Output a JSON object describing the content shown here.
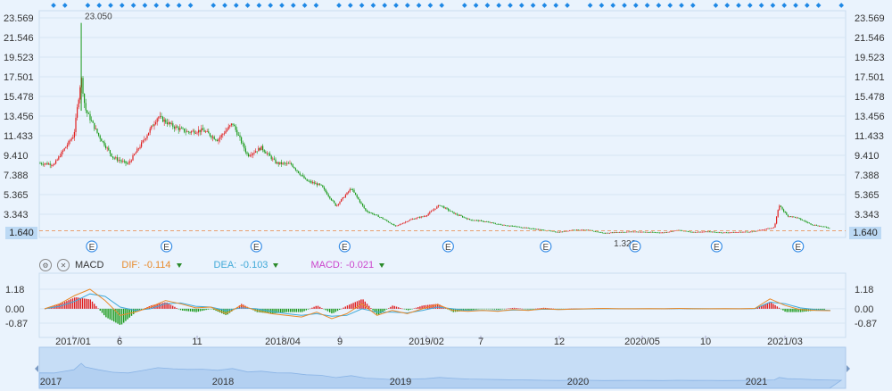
{
  "chart_data": [
    {
      "type": "candlestick",
      "title": "",
      "y_ticks": [
        "23.569",
        "21.546",
        "19.523",
        "17.501",
        "15.478",
        "13.456",
        "11.433",
        "9.410",
        "7.388",
        "5.365",
        "3.343"
      ],
      "ylim": [
        1.32,
        23.569
      ],
      "current_price": "1.640",
      "max_label": "23.050",
      "min_label": "1.320",
      "close_series": [
        {
          "date": "2016-12-01",
          "close": 8.6
        },
        {
          "date": "2017-01-01",
          "close": 8.5
        },
        {
          "date": "2017-01-15",
          "close": 9.6
        },
        {
          "date": "2017-02-10",
          "close": 11.5
        },
        {
          "date": "2017-02-25",
          "close": 17.5
        },
        {
          "date": "2017-03-05",
          "close": 14.2
        },
        {
          "date": "2017-04-01",
          "close": 11.5
        },
        {
          "date": "2017-05-01",
          "close": 9.2
        },
        {
          "date": "2017-06-01",
          "close": 8.5
        },
        {
          "date": "2017-07-01",
          "close": 10.8
        },
        {
          "date": "2017-08-01",
          "close": 13.4
        },
        {
          "date": "2017-09-01",
          "close": 12.4
        },
        {
          "date": "2017-10-01",
          "close": 11.8
        },
        {
          "date": "2017-11-01",
          "close": 12.0
        },
        {
          "date": "2017-12-01",
          "close": 11.0
        },
        {
          "date": "2018-01-01",
          "close": 12.7
        },
        {
          "date": "2018-02-01",
          "close": 9.4
        },
        {
          "date": "2018-03-01",
          "close": 10.2
        },
        {
          "date": "2018-04-01",
          "close": 8.6
        },
        {
          "date": "2018-05-01",
          "close": 8.5
        },
        {
          "date": "2018-06-01",
          "close": 6.8
        },
        {
          "date": "2018-07-01",
          "close": 6.3
        },
        {
          "date": "2018-08-01",
          "close": 4.2
        },
        {
          "date": "2018-09-01",
          "close": 6.0
        },
        {
          "date": "2018-10-01",
          "close": 3.7
        },
        {
          "date": "2018-11-01",
          "close": 3.0
        },
        {
          "date": "2018-12-01",
          "close": 2.1
        },
        {
          "date": "2019-01-01",
          "close": 2.8
        },
        {
          "date": "2019-02-01",
          "close": 3.2
        },
        {
          "date": "2019-03-01",
          "close": 4.3
        },
        {
          "date": "2019-04-01",
          "close": 3.4
        },
        {
          "date": "2019-05-01",
          "close": 2.8
        },
        {
          "date": "2019-06-01",
          "close": 2.6
        },
        {
          "date": "2019-07-01",
          "close": 2.3
        },
        {
          "date": "2019-08-01",
          "close": 2.1
        },
        {
          "date": "2019-09-01",
          "close": 1.9
        },
        {
          "date": "2019-10-01",
          "close": 1.7
        },
        {
          "date": "2019-11-01",
          "close": 1.5
        },
        {
          "date": "2019-12-01",
          "close": 1.75
        },
        {
          "date": "2020-01-01",
          "close": 1.7
        },
        {
          "date": "2020-02-01",
          "close": 1.4
        },
        {
          "date": "2020-03-01",
          "close": 1.5
        },
        {
          "date": "2020-04-01",
          "close": 1.55
        },
        {
          "date": "2020-05-01",
          "close": 1.5
        },
        {
          "date": "2020-06-01",
          "close": 1.45
        },
        {
          "date": "2020-07-01",
          "close": 1.7
        },
        {
          "date": "2020-08-01",
          "close": 1.5
        },
        {
          "date": "2020-09-01",
          "close": 1.55
        },
        {
          "date": "2020-10-01",
          "close": 1.45
        },
        {
          "date": "2020-11-01",
          "close": 1.5
        },
        {
          "date": "2020-12-01",
          "close": 1.55
        },
        {
          "date": "2021-01-15",
          "close": 2.0
        },
        {
          "date": "2021-01-25",
          "close": 4.3
        },
        {
          "date": "2021-02-10",
          "close": 3.2
        },
        {
          "date": "2021-03-01",
          "close": 3.0
        },
        {
          "date": "2021-04-01",
          "close": 2.3
        },
        {
          "date": "2021-05-01",
          "close": 2.0
        },
        {
          "date": "2021-06-01",
          "close": 1.64
        }
      ]
    },
    {
      "type": "macd",
      "y_ticks": [
        "1.18",
        "0.00",
        "-0.87"
      ],
      "ylim": [
        -0.87,
        1.18
      ],
      "legend": {
        "name": "MACD",
        "dif_label": "DIF:",
        "dif": "-0.114",
        "dea_label": "DEA:",
        "dea": "-0.103",
        "macd_label": "MACD:",
        "macd": "-0.021"
      },
      "dif_series": [
        0.0,
        0.3,
        0.8,
        1.18,
        0.5,
        -0.4,
        -0.2,
        0.1,
        0.5,
        0.3,
        0.05,
        0.1,
        -0.3,
        0.2,
        -0.1,
        -0.3,
        -0.4,
        -0.5,
        -0.2,
        -0.6,
        -0.3,
        0.3,
        -0.4,
        -0.1,
        -0.3,
        0.0,
        0.25,
        -0.1,
        -0.15,
        -0.1,
        -0.15,
        -0.05,
        -0.1,
        0.0,
        -0.05,
        -0.02,
        0.0,
        0.02,
        0.0,
        0.0,
        0.01,
        0.0,
        0.02,
        0.0,
        0.0,
        0.01,
        0.0,
        0.02,
        0.6,
        0.2,
        -0.05,
        -0.1,
        -0.114
      ],
      "dea_series": [
        0.0,
        0.15,
        0.45,
        0.9,
        0.75,
        0.1,
        -0.1,
        0.0,
        0.3,
        0.35,
        0.15,
        0.1,
        -0.1,
        0.05,
        0.0,
        -0.15,
        -0.3,
        -0.4,
        -0.3,
        -0.45,
        -0.4,
        0.0,
        -0.2,
        -0.2,
        -0.25,
        -0.1,
        0.1,
        0.0,
        -0.1,
        -0.1,
        -0.12,
        -0.08,
        -0.08,
        -0.03,
        -0.04,
        -0.03,
        -0.01,
        0.0,
        0.0,
        0.0,
        0.0,
        0.0,
        0.01,
        0.01,
        0.0,
        0.0,
        0.0,
        0.01,
        0.4,
        0.3,
        0.05,
        -0.05,
        -0.103
      ]
    }
  ],
  "x_axis": {
    "labels": [
      "2017/01",
      "6",
      "11",
      "2018/04",
      "9",
      "2019/02",
      "7",
      "12",
      "2020/05",
      "10",
      "2021/03"
    ]
  },
  "navigator": {
    "labels": [
      "2017",
      "2018",
      "2019",
      "2020",
      "2021"
    ]
  },
  "colors": {
    "up": "#e02020",
    "down": "#1a9a1a",
    "dif": "#e88a2a",
    "dea": "#40a9d8",
    "macd_label": "#cc44cc",
    "dots": "#1e88e5",
    "event": "#3a8ee6"
  }
}
